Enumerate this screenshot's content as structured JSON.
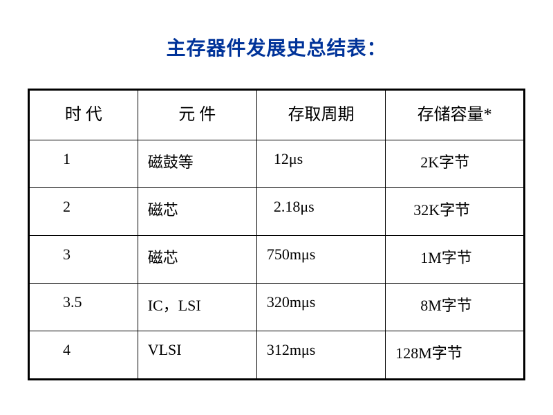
{
  "title": "主存器件发展史总结表：",
  "title_color": "#003399",
  "title_fontsize": 28,
  "table": {
    "border_color": "#000000",
    "outer_border_width": 3,
    "inner_border_width": 1,
    "background_color": "#ffffff",
    "text_color": "#000000",
    "cell_fontsize": 22,
    "columns": [
      {
        "label": "时  代",
        "width_pct": 22,
        "align": "center"
      },
      {
        "label": "元   件",
        "width_pct": 24,
        "align": "center"
      },
      {
        "label": "存取周期",
        "width_pct": 26,
        "align": "center"
      },
      {
        "label": "存储容量*",
        "width_pct": 28,
        "align": "center"
      }
    ],
    "rows": [
      {
        "gen": "1",
        "component": "磁鼓等",
        "cycle": " 12μs",
        "capacity": "2K字节"
      },
      {
        "gen": "2",
        "component": "磁芯",
        "cycle": "  2.18μs",
        "capacity": "32K字节"
      },
      {
        "gen": "3",
        "component": "磁芯",
        "cycle": "750mμs",
        "capacity": "1M字节"
      },
      {
        "gen": "3.5",
        "component": "IC，LSI",
        "cycle": "320mμs",
        "capacity": "8M字节"
      },
      {
        "gen": "4",
        "component": "VLSI",
        "cycle": "312mμs",
        "capacity": "128M字节"
      }
    ]
  }
}
